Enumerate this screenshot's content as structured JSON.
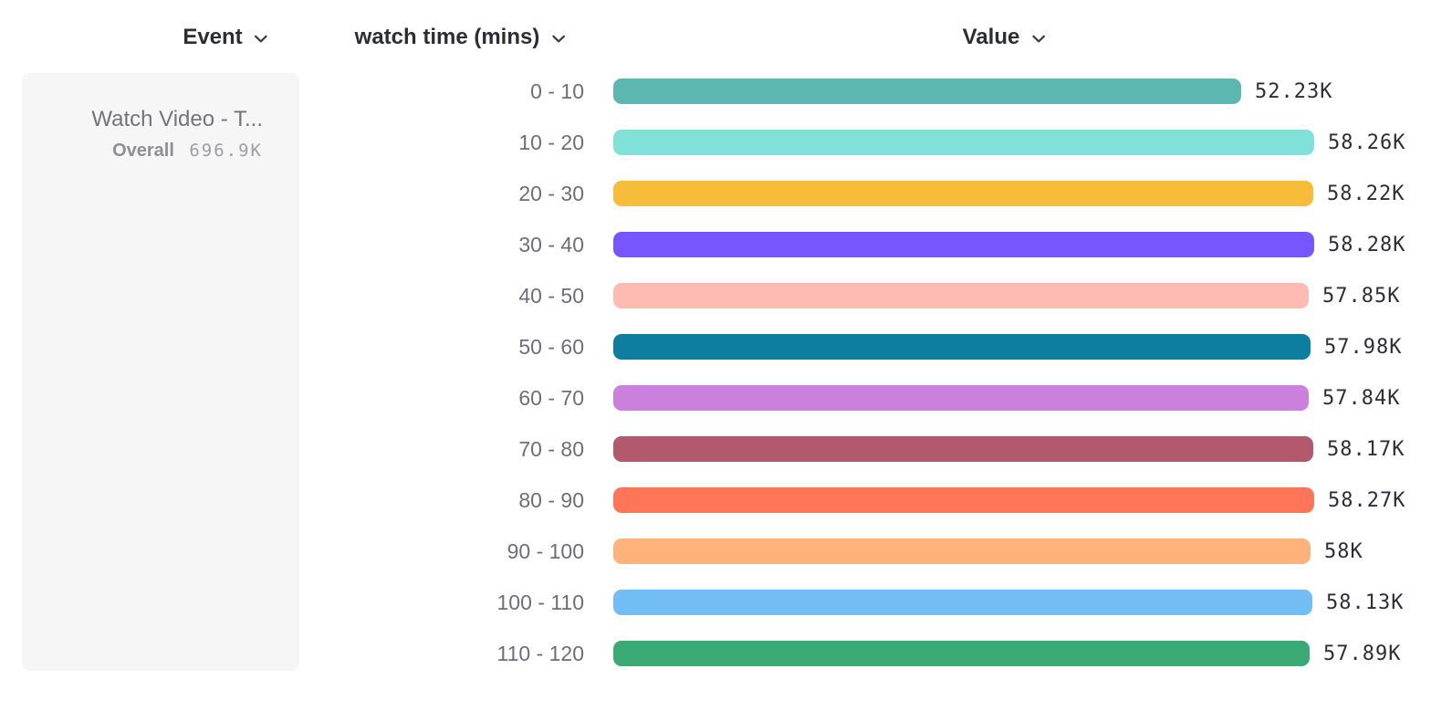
{
  "header": {
    "event_label": "Event",
    "breakdown_label": "watch time (mins)",
    "value_label": "Value"
  },
  "event_card": {
    "title": "Watch Video - T...",
    "overall_label": "Overall",
    "overall_value": "696.9K"
  },
  "chart_data": {
    "type": "bar",
    "orientation": "horizontal",
    "title": "",
    "xlabel": "Value",
    "ylabel": "watch time (mins)",
    "categories": [
      "0 - 10",
      "10 - 20",
      "20 - 30",
      "30 - 40",
      "40 - 50",
      "50 - 60",
      "60 - 70",
      "70 - 80",
      "80 - 90",
      "90 - 100",
      "100 - 110",
      "110 - 120"
    ],
    "values": [
      52.23,
      58.26,
      58.22,
      58.28,
      57.85,
      57.98,
      57.84,
      58.17,
      58.27,
      58.0,
      58.13,
      57.89
    ],
    "unit": "K",
    "value_labels": [
      "52.23K",
      "58.26K",
      "58.22K",
      "58.28K",
      "57.85K",
      "57.98K",
      "57.84K",
      "58.17K",
      "58.27K",
      "58K",
      "58.13K",
      "57.89K"
    ],
    "colors": [
      "#5BB7AF",
      "#80E1D9",
      "#F8BC3B",
      "#7856FF",
      "#FEBBB2",
      "#0D7EA0",
      "#CA80DC",
      "#B2596E",
      "#FF7557",
      "#FFB27A",
      "#72BEF4",
      "#3BA974"
    ],
    "xlim": [
      0,
      58.28
    ],
    "grid": false,
    "legend": false
  }
}
